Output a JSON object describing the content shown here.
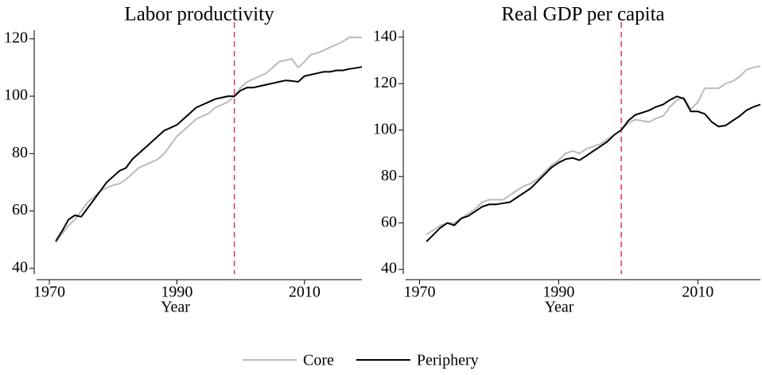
{
  "chart_data": [
    {
      "type": "line",
      "title": "Labor productivity",
      "x_label": "Year",
      "x": [
        1971,
        1972,
        1973,
        1974,
        1975,
        1976,
        1977,
        1978,
        1979,
        1980,
        1981,
        1982,
        1983,
        1984,
        1985,
        1986,
        1987,
        1988,
        1989,
        1990,
        1991,
        1992,
        1993,
        1994,
        1995,
        1996,
        1997,
        1998,
        1999,
        2000,
        2001,
        2002,
        2003,
        2004,
        2005,
        2006,
        2007,
        2008,
        2009,
        2010,
        2011,
        2012,
        2013,
        2014,
        2015,
        2016,
        2017,
        2018,
        2019
      ],
      "series": [
        {
          "name": "Core",
          "color": "#bbbbbb",
          "values": [
            49,
            52,
            55,
            57,
            60,
            63,
            65,
            67,
            68,
            69,
            69.5,
            71,
            73,
            75,
            76,
            77,
            78,
            80,
            83,
            86,
            88,
            90,
            92,
            93,
            94,
            96,
            97,
            98,
            100,
            103,
            105,
            106,
            107,
            108,
            110,
            112,
            112.5,
            113,
            110,
            112,
            114.5,
            115,
            116,
            117,
            118,
            119,
            120.5,
            120.5,
            120.4
          ]
        },
        {
          "name": "Periphery",
          "color": "#000000",
          "values": [
            49.5,
            53,
            57,
            58.5,
            58,
            61,
            64,
            67,
            70,
            72,
            74,
            75,
            78,
            80,
            82,
            84,
            86,
            88,
            89,
            90,
            92,
            94,
            96,
            97,
            98,
            99,
            99.5,
            100,
            100,
            102,
            103,
            103,
            103.5,
            104,
            104.5,
            105,
            105.5,
            105.3,
            105,
            107,
            107.5,
            108,
            108.5,
            108.5,
            109,
            109,
            109.5,
            109.8,
            110.2
          ]
        }
      ],
      "xlim": [
        1968,
        2019
      ],
      "ylim": [
        38,
        123
      ],
      "xticks": [
        1970,
        1990,
        2010
      ],
      "yticks": [
        40,
        60,
        80,
        100,
        120
      ],
      "vline": {
        "value": 1999,
        "color": "#d6336c"
      }
    },
    {
      "type": "line",
      "title": "Real GDP per capita",
      "x_label": "Year",
      "x": [
        1971,
        1972,
        1973,
        1974,
        1975,
        1976,
        1977,
        1978,
        1979,
        1980,
        1981,
        1982,
        1983,
        1984,
        1985,
        1986,
        1987,
        1988,
        1989,
        1990,
        1991,
        1992,
        1993,
        1994,
        1995,
        1996,
        1997,
        1998,
        1999,
        2000,
        2001,
        2002,
        2003,
        2004,
        2005,
        2006,
        2007,
        2008,
        2009,
        2010,
        2011,
        2012,
        2013,
        2014,
        2015,
        2016,
        2017,
        2018,
        2019
      ],
      "series": [
        {
          "name": "Core",
          "color": "#bbbbbb",
          "values": [
            55,
            57,
            59,
            60,
            60,
            62,
            64,
            66,
            69,
            70,
            70,
            70,
            72,
            74,
            76,
            77,
            79,
            82,
            85,
            87,
            90,
            91,
            90,
            92,
            93,
            94,
            96,
            98,
            100,
            103,
            104.5,
            104,
            103.5,
            105,
            106,
            110,
            113,
            114,
            109,
            112,
            118,
            118,
            118,
            120,
            121,
            123,
            126,
            127,
            127.5
          ]
        },
        {
          "name": "Periphery",
          "color": "#000000",
          "values": [
            52,
            55,
            58,
            60,
            59,
            62,
            63,
            65,
            67,
            68,
            68,
            68.5,
            69,
            71,
            73,
            75,
            78,
            81,
            84,
            86,
            87.5,
            88,
            87,
            89,
            91,
            93,
            95,
            98,
            100,
            104,
            106.5,
            107.5,
            108.5,
            110,
            111,
            113,
            114.5,
            113.5,
            108,
            108,
            107,
            103.5,
            101.5,
            102,
            104,
            106,
            108.5,
            110,
            111
          ]
        }
      ],
      "xlim": [
        1968,
        2019
      ],
      "ylim": [
        38,
        143
      ],
      "xticks": [
        1970,
        1990,
        2010
      ],
      "yticks": [
        40,
        60,
        80,
        100,
        120,
        140
      ],
      "vline": {
        "value": 1999,
        "color": "#d6336c"
      }
    }
  ]
}
